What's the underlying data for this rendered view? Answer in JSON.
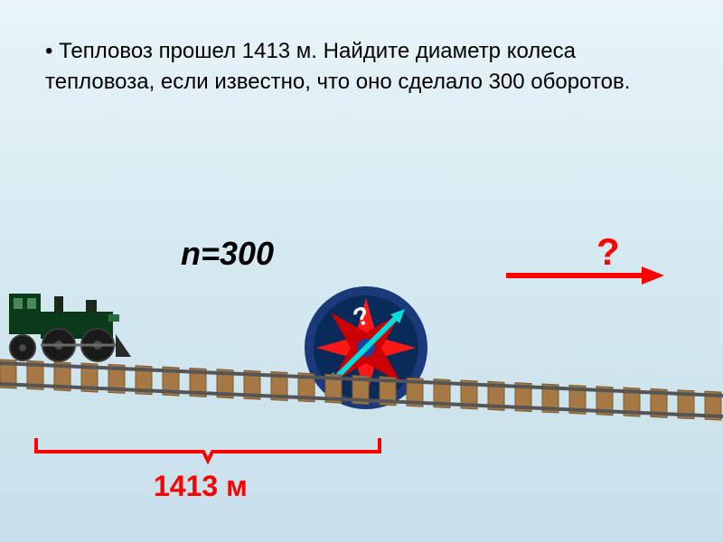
{
  "problem": {
    "bullet": "•",
    "text": " Тепловоз прошел 1413 м. Найдите диаметр колеса тепловоза, если известно, что оно сделало 300 оборотов."
  },
  "labels": {
    "n_equals": "n=300",
    "question": "?",
    "wheel_question": "?",
    "distance": "1413 м"
  },
  "colors": {
    "background_top": "#e8f4f8",
    "background_bottom": "#c8e0ea",
    "text": "#000000",
    "accent_red": "#ff0000",
    "wheel_outer": "#1a3a7a",
    "wheel_inner": "#ff1818",
    "wheel_center": "#2040a0",
    "arrow_cyan": "#00dddd",
    "locomotive_body": "#0a4a2a",
    "track_rail": "#666666",
    "track_sleeper": "#a67843",
    "bracket": "#ff0000"
  },
  "geometry": {
    "wheel_radius": 68,
    "wheel_spokes": 8,
    "arrow_length": 160,
    "bracket_width": 380,
    "track_sleeper_count": 28,
    "track_sleeper_width": 18,
    "track_sleeper_gap": 12
  },
  "typography": {
    "problem_fontsize": 24,
    "n_label_fontsize": 36,
    "question_fontsize": 42,
    "distance_fontsize": 32
  }
}
